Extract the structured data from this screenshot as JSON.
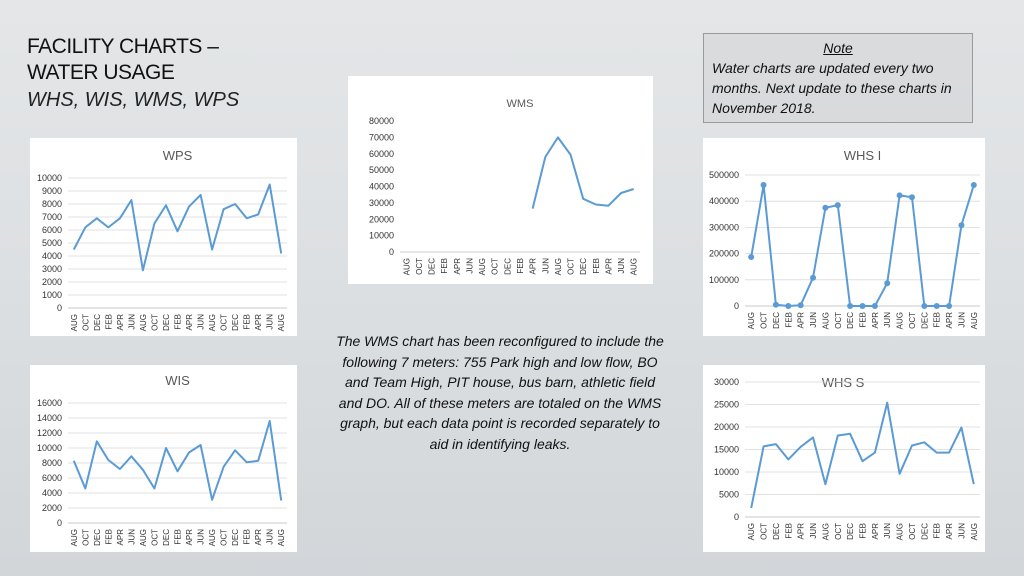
{
  "header": {
    "line1": "FACILITY CHARTS –",
    "line2": "WATER USAGE",
    "subtitle": "WHS, WIS, WMS, WPS"
  },
  "note": {
    "heading": "Note",
    "text": "Water charts are updated every two months. Next update to these charts in November 2018."
  },
  "description": "The WMS chart has been reconfigured to include the following 7 meters: 755 Park high and low flow, BO and Team High, PIT house, bus barn, athletic field and DO. All of these meters are totaled on the WMS graph, but each data point is recorded separately to aid in identifying leaks.",
  "chart_data": [
    {
      "id": "wms",
      "type": "line",
      "title": "WMS",
      "markers": false,
      "categories": [
        "AUG",
        "OCT",
        "DEC",
        "FEB",
        "APR",
        "JUN",
        "AUG",
        "OCT",
        "DEC",
        "FEB",
        "APR",
        "JUN",
        "AUG",
        "OCT",
        "DEC",
        "FEB",
        "APR",
        "JUN",
        "AUG"
      ],
      "values": [
        null,
        null,
        null,
        null,
        null,
        null,
        null,
        null,
        null,
        null,
        26500,
        58000,
        70000,
        59500,
        32500,
        29000,
        28300,
        36000,
        38500
      ],
      "yticks": [
        0,
        10000,
        20000,
        30000,
        40000,
        50000,
        60000,
        70000,
        80000
      ],
      "ylim": [
        0,
        80000
      ],
      "grid": false,
      "color": "#5b9bd5"
    },
    {
      "id": "wps",
      "type": "line",
      "title": "WPS",
      "markers": false,
      "categories": [
        "AUG",
        "OCT",
        "DEC",
        "FEB",
        "APR",
        "JUN",
        "AUG",
        "OCT",
        "DEC",
        "FEB",
        "APR",
        "JUN",
        "AUG",
        "OCT",
        "DEC",
        "FEB",
        "APR",
        "JUN",
        "AUG"
      ],
      "values": [
        4500,
        6200,
        6900,
        6200,
        6900,
        8300,
        2900,
        6500,
        7900,
        5900,
        7800,
        8700,
        4500,
        7600,
        8000,
        6900,
        7200,
        9500,
        4200
      ],
      "yticks": [
        0,
        1000,
        2000,
        3000,
        4000,
        5000,
        6000,
        7000,
        8000,
        9000,
        10000
      ],
      "ylim": [
        0,
        10000
      ],
      "grid": true,
      "color": "#5b9bd5"
    },
    {
      "id": "wis",
      "type": "line",
      "title": "WIS",
      "markers": false,
      "categories": [
        "AUG",
        "OCT",
        "DEC",
        "FEB",
        "APR",
        "JUN",
        "AUG",
        "OCT",
        "DEC",
        "FEB",
        "APR",
        "JUN",
        "AUG",
        "OCT",
        "DEC",
        "FEB",
        "APR",
        "JUN",
        "AUG"
      ],
      "values": [
        8300,
        4600,
        10900,
        8400,
        7200,
        8900,
        7100,
        4600,
        10000,
        6900,
        9400,
        10400,
        3100,
        7500,
        9700,
        8100,
        8300,
        13600,
        3000
      ],
      "yticks": [
        0,
        2000,
        4000,
        6000,
        8000,
        10000,
        12000,
        14000,
        16000
      ],
      "ylim": [
        0,
        16000
      ],
      "grid": true,
      "color": "#5b9bd5"
    },
    {
      "id": "whsi",
      "type": "line",
      "title": "WHS I",
      "markers": true,
      "categories": [
        "AUG",
        "OCT",
        "DEC",
        "FEB",
        "APR",
        "JUN",
        "AUG",
        "OCT",
        "DEC",
        "FEB",
        "APR",
        "JUN",
        "AUG",
        "OCT",
        "DEC",
        "FEB",
        "APR",
        "JUN",
        "AUG"
      ],
      "values": [
        187000,
        462000,
        5000,
        0,
        3000,
        108000,
        375000,
        385000,
        0,
        0,
        0,
        87000,
        422000,
        415000,
        0,
        0,
        0,
        308000,
        462000
      ],
      "yticks": [
        0,
        100000,
        200000,
        300000,
        400000,
        500000
      ],
      "ylim": [
        0,
        500000
      ],
      "grid": true,
      "color": "#5b9bd5"
    },
    {
      "id": "whss",
      "type": "line",
      "title": "WHS S",
      "markers": false,
      "categories": [
        "AUG",
        "OCT",
        "DEC",
        "FEB",
        "APR",
        "JUN",
        "AUG",
        "OCT",
        "DEC",
        "FEB",
        "APR",
        "JUN",
        "AUG",
        "OCT",
        "DEC",
        "FEB",
        "APR",
        "JUN",
        "AUG"
      ],
      "values": [
        2000,
        15700,
        16200,
        12800,
        15600,
        17700,
        7300,
        18100,
        18500,
        12400,
        14300,
        25400,
        9600,
        15900,
        16600,
        14300,
        14300,
        19900,
        7300
      ],
      "yticks": [
        0,
        5000,
        10000,
        15000,
        20000,
        25000,
        30000
      ],
      "ylim": [
        0,
        30000
      ],
      "grid": true,
      "color": "#5b9bd5"
    }
  ]
}
